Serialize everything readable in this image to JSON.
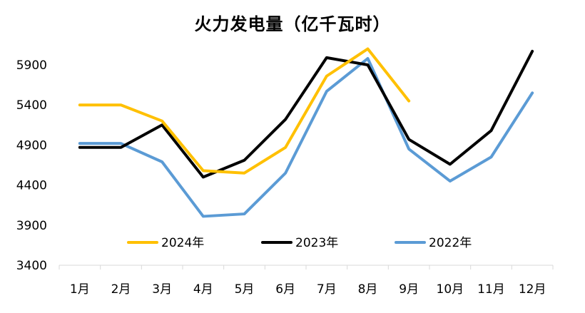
{
  "chart_data": {
    "type": "line",
    "title": "火力发电量（亿千瓦时）",
    "xlabel": "",
    "ylabel": "",
    "categories": [
      "1月",
      "2月",
      "3月",
      "4月",
      "5月",
      "6月",
      "7月",
      "8月",
      "9月",
      "10月",
      "11月",
      "12月"
    ],
    "yticks": [
      3400,
      3900,
      4400,
      4900,
      5400,
      5900
    ],
    "ylim": [
      3400,
      5900
    ],
    "grid": false,
    "legend_position": "bottom-inside",
    "series": [
      {
        "name": "2024年",
        "color": "#FFC000",
        "values": [
          5400,
          5400,
          5200,
          4580,
          4550,
          4870,
          5760,
          6100,
          5450,
          null,
          null,
          null
        ]
      },
      {
        "name": "2023年",
        "color": "#000000",
        "values": [
          4870,
          4870,
          5150,
          4500,
          4710,
          5220,
          5990,
          5900,
          4970,
          4660,
          5080,
          6070
        ]
      },
      {
        "name": "2022年",
        "color": "#5B9BD5",
        "values": [
          4920,
          4920,
          4690,
          4010,
          4040,
          4550,
          5570,
          5980,
          4850,
          4450,
          4750,
          5550
        ]
      }
    ]
  }
}
